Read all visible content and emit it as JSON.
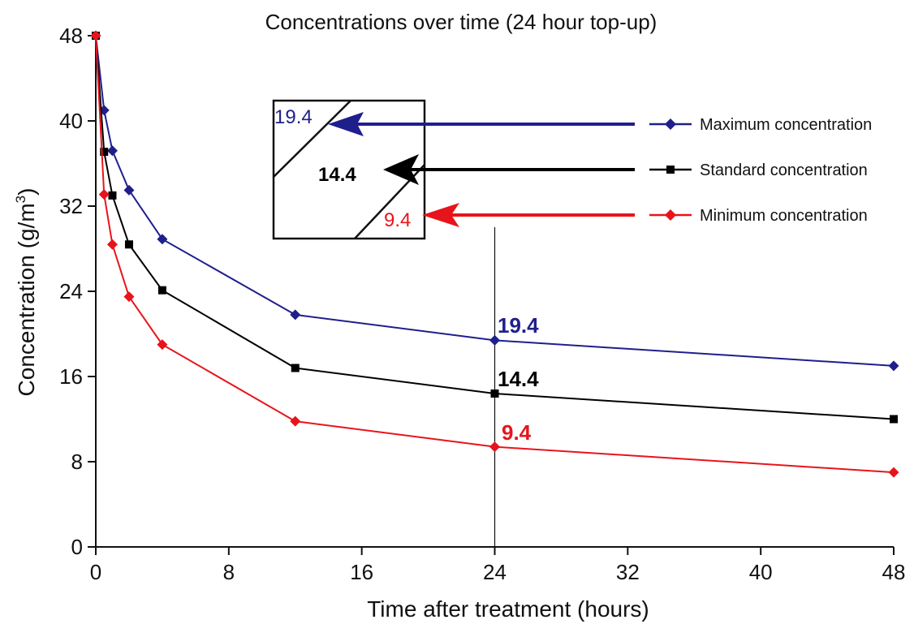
{
  "chart_data": {
    "type": "line",
    "title": "Concentrations over time (24 hour top-up)",
    "xlabel": "Time after treatment (hours)",
    "ylabel": "Concentration (g/m",
    "ylabel_superscript": "3",
    "ylabel_close": ")",
    "xlim": [
      0,
      48
    ],
    "ylim": [
      0,
      48
    ],
    "xticks": [
      "0",
      "8",
      "16",
      "24",
      "32",
      "40",
      "48"
    ],
    "yticks": [
      "0",
      "8",
      "16",
      "24",
      "32",
      "40",
      "48"
    ],
    "grid": false,
    "legend_position": "top-right",
    "reference_line_x": 24,
    "series": [
      {
        "name": "Maximum concentration",
        "color": "#1f1f8c",
        "marker": "diamond",
        "x": [
          0,
          0.5,
          1,
          2,
          4,
          12,
          24,
          48
        ],
        "y": [
          48,
          41,
          37.2,
          33.5,
          28.9,
          21.8,
          19.4,
          17
        ]
      },
      {
        "name": "Standard concentration",
        "color": "#000000",
        "marker": "square",
        "x": [
          0,
          0.5,
          1,
          2,
          4,
          12,
          24,
          48
        ],
        "y": [
          48,
          37.1,
          33,
          28.4,
          24.1,
          16.8,
          14.4,
          12
        ]
      },
      {
        "name": "Minimum concentration",
        "color": "#e8141b",
        "marker": "diamond",
        "x": [
          0,
          0.5,
          1,
          2,
          4,
          12,
          24,
          48
        ],
        "y": [
          48,
          33.1,
          28.4,
          23.5,
          19,
          11.8,
          9.4,
          7
        ]
      }
    ],
    "annotations": [
      {
        "text": "19.4",
        "color": "#1f1f8c"
      },
      {
        "text": "14.4",
        "color": "#000000"
      },
      {
        "text": "9.4",
        "color": "#e8141b"
      }
    ]
  }
}
